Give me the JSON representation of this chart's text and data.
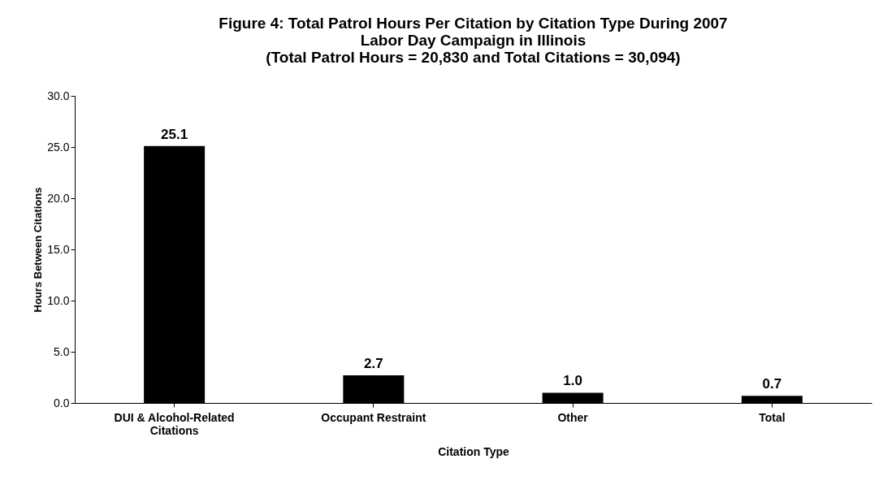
{
  "chart_data": {
    "type": "bar",
    "title": "Figure 4: Total Patrol Hours Per Citation by Citation Type During 2007 Labor Day Campaign in Illinois",
    "subtitle": "(Total Patrol Hours = 20,830 and Total Citations = 30,094)",
    "xlabel": "Citation Type",
    "ylabel": "Hours Between Citations",
    "categories": [
      "DUI & Alcohol-Related Citations",
      "Occupant Restraint",
      "Other",
      "Total"
    ],
    "values": [
      25.1,
      2.7,
      1.0,
      0.7
    ],
    "value_labels": [
      "25.1",
      "2.7",
      "1.0",
      "0.7"
    ],
    "color": "#000000",
    "ylim": [
      0,
      30
    ],
    "yticks": [
      {
        "value": 0,
        "label": "0.0"
      },
      {
        "value": 5,
        "label": "5.0"
      },
      {
        "value": 10,
        "label": "10.0"
      },
      {
        "value": 15,
        "label": "15.0"
      },
      {
        "value": 20,
        "label": "20.0"
      },
      {
        "value": 25,
        "label": "25.0"
      },
      {
        "value": 30,
        "label": "30.0"
      }
    ],
    "grid": false
  }
}
